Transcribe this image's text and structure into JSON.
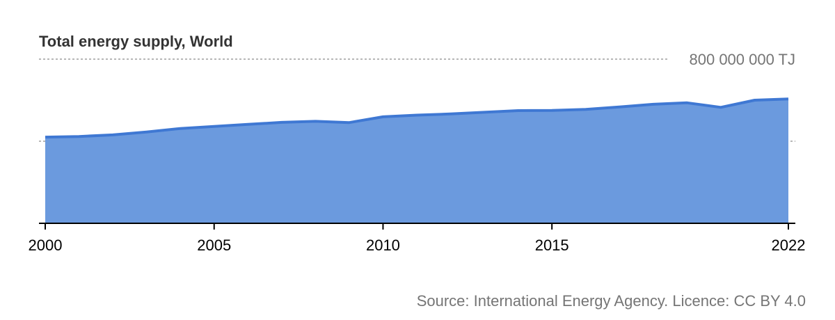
{
  "colors": {
    "area_fill": "#6b9ade",
    "area_line": "#3f78d3",
    "grid": "#8a8a8a",
    "axis": "#000000",
    "title": "#333333",
    "muted": "#757575"
  },
  "chart_data": {
    "type": "area",
    "title": "Total energy supply, World",
    "xlabel": "",
    "ylabel": "",
    "y_gridline_label": "800 000 000 TJ",
    "grid": true,
    "ylim": [
      0,
      800000000
    ],
    "x_ticks": [
      "2000",
      "2005",
      "2010",
      "2015",
      "2022"
    ],
    "x": [
      2000,
      2001,
      2002,
      2003,
      2004,
      2005,
      2006,
      2007,
      2008,
      2009,
      2010,
      2011,
      2012,
      2013,
      2014,
      2015,
      2016,
      2017,
      2018,
      2019,
      2020,
      2021,
      2022
    ],
    "values": [
      420000000,
      423000000,
      431000000,
      445000000,
      462000000,
      472000000,
      482000000,
      492000000,
      497000000,
      491000000,
      519000000,
      527000000,
      533000000,
      541000000,
      549000000,
      550000000,
      555000000,
      567000000,
      580000000,
      587000000,
      565000000,
      600000000,
      606000000
    ]
  },
  "source_text": "Source: International Energy Agency. Licence: CC BY 4.0"
}
